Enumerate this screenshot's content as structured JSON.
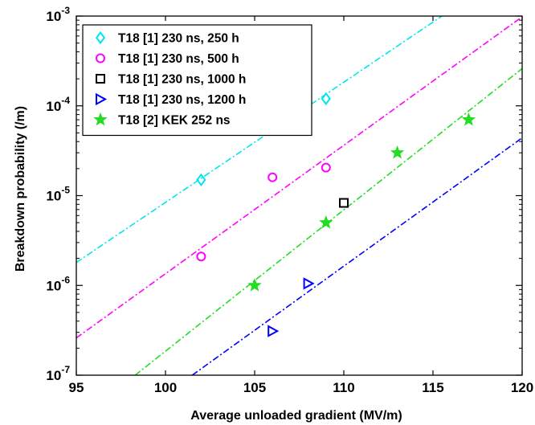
{
  "chart_data": {
    "type": "scatter",
    "xlabel": "Average unloaded gradient (MV/m)",
    "ylabel": "Breakdown probability (/m)",
    "xlim": [
      95,
      120
    ],
    "ylim": [
      1e-07,
      0.001
    ],
    "yscale": "log",
    "grid": false,
    "legend_position": "top-left",
    "x_ticks": [
      95,
      100,
      105,
      110,
      115,
      120
    ],
    "y_ticks": [
      1e-07,
      1e-06,
      1e-05,
      0.0001,
      0.001
    ],
    "series": [
      {
        "name": "T18 [1] 230 ns, 250 h",
        "marker": "diamond",
        "color": "#00e5ee",
        "points": [
          [
            102,
            1.5e-05
          ],
          [
            109,
            0.00012
          ]
        ],
        "fit_line": [
          [
            95,
            1.8e-06
          ],
          [
            115.5,
            0.001
          ]
        ]
      },
      {
        "name": "T18 [1] 230 ns, 500 h",
        "marker": "circle",
        "color": "#ff00ff",
        "points": [
          [
            102,
            2.1e-06
          ],
          [
            106,
            1.6e-05
          ],
          [
            109,
            2.05e-05
          ]
        ],
        "fit_line": [
          [
            95,
            2.6e-07
          ],
          [
            120,
            0.00098
          ]
        ]
      },
      {
        "name": "T18 [1] 230 ns, 1000 h",
        "marker": "square",
        "color": "#000000",
        "points": [
          [
            110,
            8.3e-06
          ]
        ],
        "fit_line": null
      },
      {
        "name": "T18 [1] 230 ns, 1200 h",
        "marker": "triangle-right",
        "color": "#0000ff",
        "points": [
          [
            106,
            3.1e-07
          ],
          [
            108,
            1.05e-06
          ]
        ],
        "fit_line": [
          [
            101.5,
            1e-07
          ],
          [
            120,
            4.4e-05
          ]
        ]
      },
      {
        "name": "T18 [2] KEK 252 ns",
        "marker": "star",
        "color": "#22dd22",
        "points": [
          [
            105,
            1e-06
          ],
          [
            109,
            5e-06
          ],
          [
            113,
            3e-05
          ],
          [
            117,
            7e-05
          ]
        ],
        "fit_line": [
          [
            98.3,
            1e-07
          ],
          [
            120,
            0.00026
          ]
        ]
      }
    ]
  }
}
